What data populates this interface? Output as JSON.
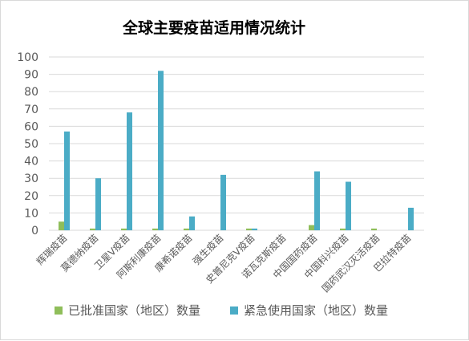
{
  "chart_data": {
    "type": "bar",
    "title": "全球主要疫苗适用情况统计",
    "categories": [
      "辉瑞疫苗",
      "莫德纳疫苗",
      "卫星V疫苗",
      "阿斯利康疫苗",
      "康希诺疫苗",
      "强生疫苗",
      "史普尼克V疫苗",
      "诺瓦克斯疫苗",
      "中国国药疫苗",
      "中国科兴疫苗",
      "国药武汉灭活疫苗",
      "巴拉特疫苗"
    ],
    "series": [
      {
        "name": "已批准国家（地区）数量",
        "color": "#8fbe5a",
        "values": [
          5,
          1,
          1,
          1,
          1,
          0,
          1,
          0,
          3,
          1,
          1,
          0
        ]
      },
      {
        "name": "紧急使用国家（地区）数量",
        "color": "#4bacc6",
        "values": [
          57,
          30,
          68,
          92,
          8,
          32,
          1,
          0,
          34,
          28,
          0,
          13
        ]
      }
    ],
    "ylim": [
      0,
      100
    ],
    "yticks": [
      0,
      10,
      20,
      30,
      40,
      50,
      60,
      70,
      80,
      90,
      100
    ],
    "grid": true,
    "legend": "bottom"
  },
  "colors": {
    "grid": "#d9d9d9",
    "axis_text": "#595959",
    "title": "#000000"
  }
}
